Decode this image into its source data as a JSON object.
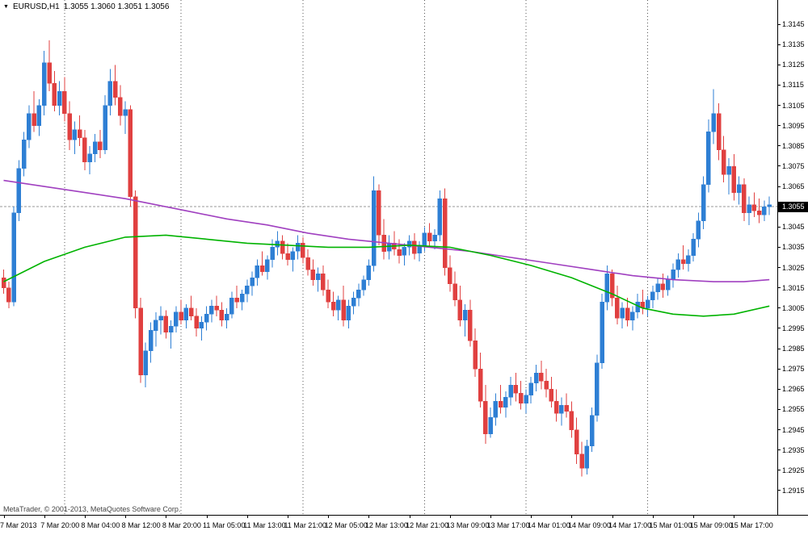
{
  "header": {
    "menu_icon": "▼",
    "symbol": "EURUSD,H1",
    "ohlc": "1.3055 1.3060 1.3051 1.3056"
  },
  "footer": {
    "copyright": "MetaTrader, © 2001-2013, MetaQuotes Software Corp."
  },
  "colors": {
    "background": "#ffffff",
    "bull": "#2e7fd4",
    "bear": "#e04040",
    "ma_slow": "#a040c0",
    "ma_fast": "#00b300",
    "separator": "#555555",
    "bid_line": "#999999",
    "axis_text": "#000000",
    "price_box_bg": "#000000",
    "price_box_text": "#ffffff"
  },
  "chart_data": {
    "type": "candlestick",
    "symbol": "EURUSD",
    "timeframe": "H1",
    "title": "EURUSD,H1 1.3055 1.3060 1.3051 1.3056",
    "current_price": 1.3055,
    "current_price_label": "1.3055",
    "price_scale": {
      "top": 1.3157,
      "bottom": 1.2903
    },
    "y_axis_labels": [
      "1.3145",
      "1.3135",
      "1.3125",
      "1.3115",
      "1.3105",
      "1.3095",
      "1.3085",
      "1.3075",
      "1.3065",
      "1.3055",
      "1.3045",
      "1.3035",
      "1.3025",
      "1.3015",
      "1.3005",
      "1.2995",
      "1.2985",
      "1.2975",
      "1.2965",
      "1.2955",
      "1.2945",
      "1.2935",
      "1.2925",
      "1.2915"
    ],
    "x_axis": {
      "labels": [
        "7 Mar 2013",
        "7 Mar 20:00",
        "8 Mar 04:00",
        "8 Mar 12:00",
        "8 Mar 20:00",
        "11 Mar 05:00",
        "11 Mar 13:00",
        "11 Mar 21:00",
        "12 Mar 05:00",
        "12 Mar 13:00",
        "12 Mar 21:00",
        "13 Mar 09:00",
        "13 Mar 17:00",
        "14 Mar 01:00",
        "14 Mar 09:00",
        "14 Mar 17:00",
        "15 Mar 01:00",
        "15 Mar 09:00",
        "15 Mar 17:00"
      ],
      "first_label_bar": 0,
      "label_every_n_bars": 8
    },
    "day_separator_bars": [
      12,
      35,
      59,
      83,
      103,
      127
    ],
    "grid": "vertical-day-separators-only",
    "legend": "none",
    "candles": [
      [
        1.302,
        1.3024,
        1.3012,
        1.3015
      ],
      [
        1.3015,
        1.3018,
        1.3005,
        1.3008
      ],
      [
        1.3008,
        1.3055,
        1.3006,
        1.3052
      ],
      [
        1.3052,
        1.3078,
        1.3048,
        1.3074
      ],
      [
        1.3074,
        1.3092,
        1.307,
        1.3088
      ],
      [
        1.3088,
        1.3105,
        1.3084,
        1.3101
      ],
      [
        1.3101,
        1.3112,
        1.3092,
        1.3095
      ],
      [
        1.3095,
        1.3108,
        1.309,
        1.3105
      ],
      [
        1.3105,
        1.3132,
        1.31,
        1.3126
      ],
      [
        1.3126,
        1.3137,
        1.3112,
        1.3116
      ],
      [
        1.3116,
        1.3122,
        1.3102,
        1.3105
      ],
      [
        1.3105,
        1.3117,
        1.31,
        1.3112
      ],
      [
        1.3112,
        1.3119,
        1.3097,
        1.3101
      ],
      [
        1.3101,
        1.3107,
        1.3083,
        1.3088
      ],
      [
        1.3088,
        1.3097,
        1.3081,
        1.3093
      ],
      [
        1.3093,
        1.31,
        1.3085,
        1.3089
      ],
      [
        1.3089,
        1.3093,
        1.3073,
        1.3077
      ],
      [
        1.3077,
        1.3085,
        1.3071,
        1.3081
      ],
      [
        1.3081,
        1.3091,
        1.3077,
        1.3087
      ],
      [
        1.3087,
        1.3093,
        1.3079,
        1.3083
      ],
      [
        1.3083,
        1.311,
        1.3081,
        1.3105
      ],
      [
        1.3105,
        1.3123,
        1.31,
        1.3117
      ],
      [
        1.3117,
        1.3125,
        1.3105,
        1.3109
      ],
      [
        1.3109,
        1.3115,
        1.3095,
        1.31
      ],
      [
        1.31,
        1.3107,
        1.3091,
        1.3103
      ],
      [
        1.3103,
        1.3105,
        1.3055,
        1.306
      ],
      [
        1.306,
        1.3063,
        1.3,
        1.3005
      ],
      [
        1.3005,
        1.301,
        1.2968,
        1.2972
      ],
      [
        1.2972,
        1.2988,
        1.2966,
        1.2984
      ],
      [
        1.2984,
        1.2998,
        1.2978,
        1.2994
      ],
      [
        1.2994,
        1.3003,
        1.2986,
        1.2999
      ],
      [
        1.2999,
        1.3006,
        1.2992,
        1.3001
      ],
      [
        1.3001,
        1.3004,
        1.299,
        1.2993
      ],
      [
        1.2993,
        1.2999,
        1.2985,
        1.2996
      ],
      [
        1.2996,
        1.3006,
        1.2993,
        1.3003
      ],
      [
        1.3003,
        1.3009,
        1.2997,
        1.2999
      ],
      [
        1.2999,
        1.3007,
        1.2995,
        1.3005
      ],
      [
        1.3005,
        1.3011,
        1.2999,
        1.3001
      ],
      [
        1.3001,
        1.3005,
        1.2991,
        1.2995
      ],
      [
        1.2995,
        1.3001,
        1.2989,
        1.2998
      ],
      [
        1.2998,
        1.3006,
        1.2994,
        1.3002
      ],
      [
        1.3002,
        1.3009,
        1.2998,
        1.3006
      ],
      [
        1.3006,
        1.3011,
        1.3001,
        1.3004
      ],
      [
        1.3004,
        1.3008,
        1.2996,
        1.2999
      ],
      [
        1.2999,
        1.3005,
        1.2995,
        1.3002
      ],
      [
        1.3002,
        1.3013,
        1.3,
        1.301
      ],
      [
        1.301,
        1.3016,
        1.3005,
        1.3008
      ],
      [
        1.3008,
        1.3014,
        1.3004,
        1.3012
      ],
      [
        1.3012,
        1.3019,
        1.3008,
        1.3016
      ],
      [
        1.3016,
        1.3023,
        1.3011,
        1.302
      ],
      [
        1.302,
        1.3029,
        1.3016,
        1.3026
      ],
      [
        1.3026,
        1.3033,
        1.3021,
        1.3023
      ],
      [
        1.3023,
        1.3031,
        1.3019,
        1.3029
      ],
      [
        1.3029,
        1.3039,
        1.3025,
        1.3035
      ],
      [
        1.3035,
        1.3043,
        1.3031,
        1.3038
      ],
      [
        1.3038,
        1.3041,
        1.3029,
        1.3032
      ],
      [
        1.3032,
        1.3037,
        1.3026,
        1.3029
      ],
      [
        1.3029,
        1.3035,
        1.3023,
        1.3033
      ],
      [
        1.3033,
        1.3041,
        1.3029,
        1.3037
      ],
      [
        1.3037,
        1.304,
        1.3027,
        1.303
      ],
      [
        1.303,
        1.3034,
        1.3021,
        1.3024
      ],
      [
        1.3024,
        1.3029,
        1.3016,
        1.3019
      ],
      [
        1.3019,
        1.3025,
        1.3013,
        1.3022
      ],
      [
        1.3022,
        1.3026,
        1.3011,
        1.3014
      ],
      [
        1.3014,
        1.3019,
        1.3005,
        1.3008
      ],
      [
        1.3008,
        1.3013,
        1.3001,
        1.3004
      ],
      [
        1.3004,
        1.3011,
        1.2999,
        1.3009
      ],
      [
        1.3009,
        1.3016,
        1.2996,
        1.2999
      ],
      [
        1.2999,
        1.3009,
        1.2995,
        1.3006
      ],
      [
        1.3006,
        1.3013,
        1.3002,
        1.301
      ],
      [
        1.301,
        1.3017,
        1.3006,
        1.3014
      ],
      [
        1.3014,
        1.3021,
        1.3011,
        1.3019
      ],
      [
        1.3019,
        1.3029,
        1.3016,
        1.3026
      ],
      [
        1.3026,
        1.307,
        1.3023,
        1.3063
      ],
      [
        1.3063,
        1.3066,
        1.3036,
        1.3041
      ],
      [
        1.3041,
        1.3049,
        1.3029,
        1.3033
      ],
      [
        1.3033,
        1.3041,
        1.3029,
        1.3037
      ],
      [
        1.3037,
        1.3043,
        1.3031,
        1.3034
      ],
      [
        1.3034,
        1.3039,
        1.3027,
        1.3031
      ],
      [
        1.3031,
        1.3037,
        1.3026,
        1.3035
      ],
      [
        1.3035,
        1.3041,
        1.3031,
        1.3038
      ],
      [
        1.3038,
        1.3042,
        1.3029,
        1.3032
      ],
      [
        1.3032,
        1.3038,
        1.3028,
        1.3036
      ],
      [
        1.3036,
        1.3045,
        1.3033,
        1.3042
      ],
      [
        1.3042,
        1.3047,
        1.3035,
        1.3038
      ],
      [
        1.3038,
        1.3044,
        1.3034,
        1.3041
      ],
      [
        1.3041,
        1.3063,
        1.3038,
        1.3059
      ],
      [
        1.3059,
        1.3064,
        1.3021,
        1.3025
      ],
      [
        1.3025,
        1.3031,
        1.3013,
        1.3017
      ],
      [
        1.3017,
        1.3023,
        1.3006,
        1.3009
      ],
      [
        1.3009,
        1.3016,
        1.2996,
        1.2999
      ],
      [
        1.2999,
        1.3007,
        1.2991,
        1.3004
      ],
      [
        1.3004,
        1.3009,
        1.2986,
        1.2989
      ],
      [
        1.2989,
        1.2995,
        1.2971,
        1.2975
      ],
      [
        1.2975,
        1.2983,
        1.2956,
        1.2959
      ],
      [
        1.2959,
        1.2967,
        1.2938,
        1.2943
      ],
      [
        1.2943,
        1.2956,
        1.2941,
        1.2951
      ],
      [
        1.2951,
        1.2963,
        1.2947,
        1.2959
      ],
      [
        1.2959,
        1.2967,
        1.2953,
        1.2956
      ],
      [
        1.2956,
        1.2964,
        1.2951,
        1.2961
      ],
      [
        1.2961,
        1.2971,
        1.2957,
        1.2967
      ],
      [
        1.2967,
        1.2973,
        1.2959,
        1.2963
      ],
      [
        1.2963,
        1.2969,
        1.2955,
        1.2958
      ],
      [
        1.2958,
        1.2965,
        1.2953,
        1.2962
      ],
      [
        1.2962,
        1.2971,
        1.2958,
        1.2968
      ],
      [
        1.2968,
        1.2977,
        1.2964,
        1.2973
      ],
      [
        1.2973,
        1.2979,
        1.2965,
        1.2969
      ],
      [
        1.2969,
        1.2975,
        1.2961,
        1.2965
      ],
      [
        1.2965,
        1.2971,
        1.2956,
        1.2959
      ],
      [
        1.2959,
        1.2965,
        1.2949,
        1.2953
      ],
      [
        1.2953,
        1.2961,
        1.2947,
        1.2957
      ],
      [
        1.2957,
        1.2963,
        1.2951,
        1.2954
      ],
      [
        1.2954,
        1.2959,
        1.2941,
        1.2945
      ],
      [
        1.2945,
        1.2951,
        1.2928,
        1.2933
      ],
      [
        1.2933,
        1.2939,
        1.2922,
        1.2926
      ],
      [
        1.2926,
        1.294,
        1.2923,
        1.2937
      ],
      [
        1.2937,
        1.2956,
        1.2934,
        1.2952
      ],
      [
        1.2952,
        1.2982,
        1.2949,
        1.2978
      ],
      [
        1.2978,
        1.3012,
        1.2975,
        1.3008
      ],
      [
        1.3008,
        1.3026,
        1.3004,
        1.3022
      ],
      [
        1.3022,
        1.3024,
        1.3006,
        1.301
      ],
      [
        1.301,
        1.3016,
        1.2997,
        1.3
      ],
      [
        1.3,
        1.3008,
        1.2995,
        1.3005
      ],
      [
        1.3005,
        1.301,
        1.2996,
        1.2999
      ],
      [
        1.2999,
        1.3006,
        1.2994,
        1.3003
      ],
      [
        1.3003,
        1.3012,
        1.3,
        1.3008
      ],
      [
        1.3008,
        1.3014,
        1.3002,
        1.3005
      ],
      [
        1.3005,
        1.3011,
        1.3001,
        1.3009
      ],
      [
        1.3009,
        1.3016,
        1.3005,
        1.3013
      ],
      [
        1.3013,
        1.302,
        1.3009,
        1.3017
      ],
      [
        1.3017,
        1.3022,
        1.301,
        1.3014
      ],
      [
        1.3014,
        1.3021,
        1.3011,
        1.3019
      ],
      [
        1.3019,
        1.3027,
        1.3015,
        1.3024
      ],
      [
        1.3024,
        1.3032,
        1.302,
        1.3029
      ],
      [
        1.3029,
        1.3036,
        1.3024,
        1.3027
      ],
      [
        1.3027,
        1.3034,
        1.3023,
        1.3031
      ],
      [
        1.3031,
        1.3042,
        1.3028,
        1.3039
      ],
      [
        1.3039,
        1.3052,
        1.3035,
        1.3048
      ],
      [
        1.3048,
        1.307,
        1.3044,
        1.3066
      ],
      [
        1.3066,
        1.3098,
        1.3062,
        1.3092
      ],
      [
        1.3092,
        1.3113,
        1.3086,
        1.3101
      ],
      [
        1.3101,
        1.3106,
        1.3078,
        1.3083
      ],
      [
        1.3083,
        1.309,
        1.3067,
        1.3071
      ],
      [
        1.3071,
        1.3079,
        1.3061,
        1.3075
      ],
      [
        1.3075,
        1.3081,
        1.3058,
        1.3062
      ],
      [
        1.3062,
        1.307,
        1.3056,
        1.3066
      ],
      [
        1.3066,
        1.3069,
        1.3048,
        1.3052
      ],
      [
        1.3052,
        1.306,
        1.3046,
        1.3056
      ],
      [
        1.3056,
        1.3062,
        1.305,
        1.3053
      ],
      [
        1.3053,
        1.3059,
        1.3047,
        1.3051
      ],
      [
        1.3051,
        1.3058,
        1.3048,
        1.3055
      ],
      [
        1.3055,
        1.306,
        1.3051,
        1.3056
      ]
    ],
    "moving_averages": [
      {
        "id": "ma-slow-purple-line",
        "name": "MA slow (purple)",
        "color_key": "ma_slow",
        "points": [
          [
            0,
            1.3068
          ],
          [
            8,
            1.3065
          ],
          [
            16,
            1.3062
          ],
          [
            24,
            1.3059
          ],
          [
            28,
            1.3057
          ],
          [
            36,
            1.3053
          ],
          [
            44,
            1.3049
          ],
          [
            52,
            1.3046
          ],
          [
            60,
            1.3042
          ],
          [
            68,
            1.3039
          ],
          [
            76,
            1.3037
          ],
          [
            84,
            1.3035
          ],
          [
            92,
            1.3033
          ],
          [
            100,
            1.303
          ],
          [
            108,
            1.3027
          ],
          [
            116,
            1.3024
          ],
          [
            124,
            1.3021
          ],
          [
            132,
            1.3019
          ],
          [
            140,
            1.3018
          ],
          [
            146,
            1.3018
          ],
          [
            151,
            1.3019
          ]
        ]
      },
      {
        "id": "ma-fast-green-line",
        "name": "MA fast (green)",
        "color_key": "ma_fast",
        "points": [
          [
            0,
            1.3018
          ],
          [
            8,
            1.3028
          ],
          [
            16,
            1.3035
          ],
          [
            24,
            1.304
          ],
          [
            32,
            1.3041
          ],
          [
            40,
            1.3039
          ],
          [
            48,
            1.3037
          ],
          [
            56,
            1.3036
          ],
          [
            64,
            1.3035
          ],
          [
            72,
            1.3035
          ],
          [
            80,
            1.3036
          ],
          [
            88,
            1.3035
          ],
          [
            96,
            1.3031
          ],
          [
            104,
            1.3026
          ],
          [
            112,
            1.302
          ],
          [
            120,
            1.3012
          ],
          [
            126,
            1.3005
          ],
          [
            132,
            1.3002
          ],
          [
            138,
            1.3001
          ],
          [
            144,
            1.3002
          ],
          [
            151,
            1.3006
          ]
        ]
      }
    ]
  }
}
